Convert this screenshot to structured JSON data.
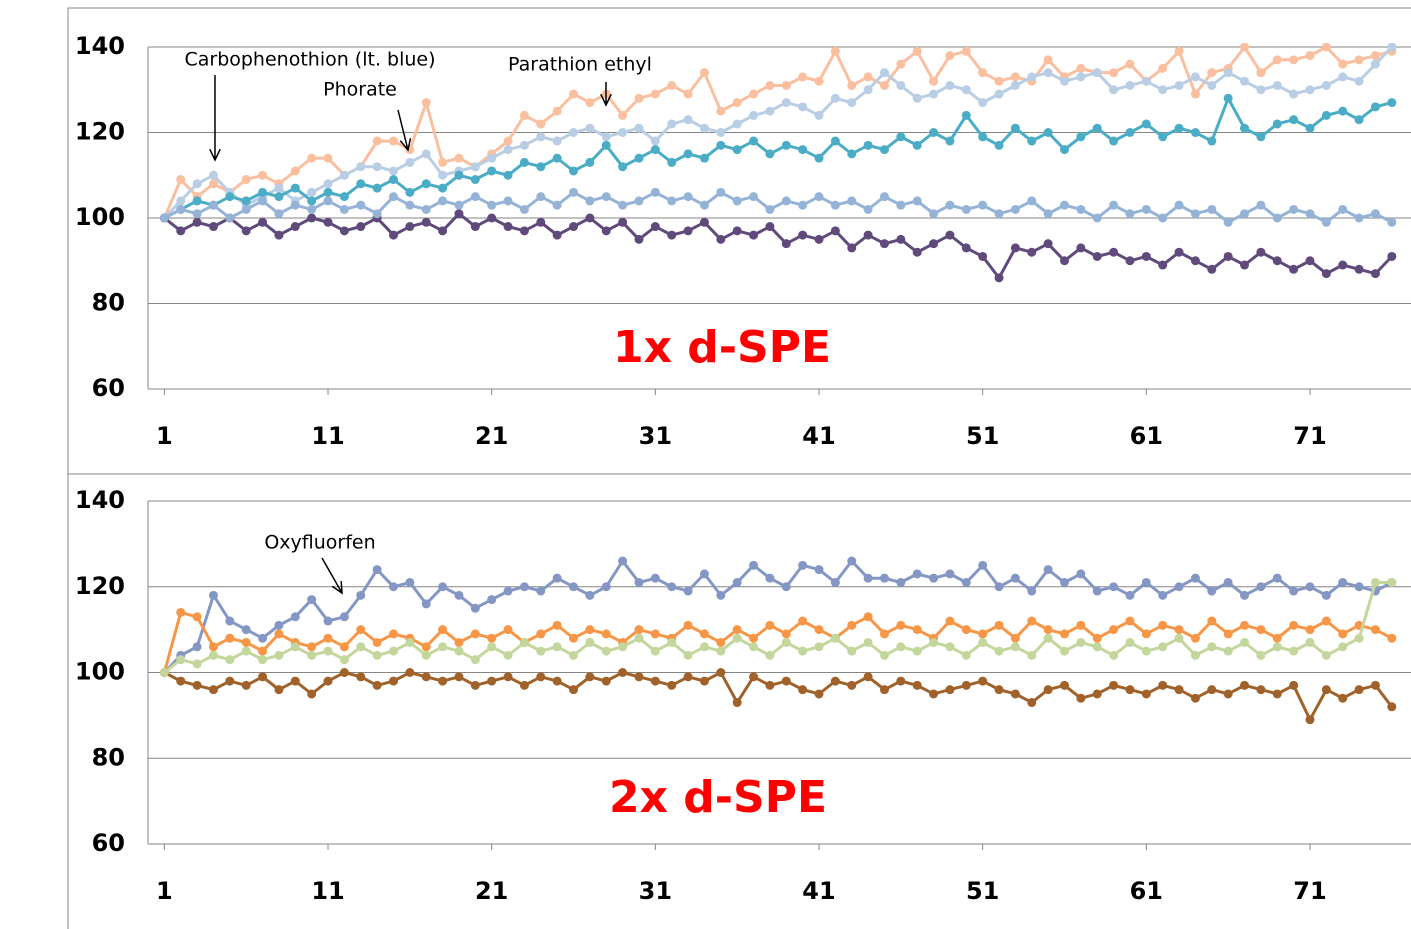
{
  "chart_data": [
    {
      "type": "line",
      "label": "1x d-SPE",
      "annotations": [
        "Carbophenothion (lt. blue)",
        "Phorate",
        "Parathion ethyl"
      ],
      "xlim": [
        0,
        76.5
      ],
      "xticks": [
        1,
        11,
        21,
        31,
        41,
        51,
        61,
        71
      ],
      "ylim": [
        60,
        140
      ],
      "yticks": [
        60,
        80,
        100,
        120,
        140
      ],
      "grid": true,
      "x": [
        1,
        2,
        3,
        4,
        5,
        6,
        7,
        8,
        9,
        10,
        11,
        12,
        13,
        14,
        15,
        16,
        17,
        18,
        19,
        20,
        21,
        22,
        23,
        24,
        25,
        26,
        27,
        28,
        29,
        30,
        31,
        32,
        33,
        34,
        35,
        36,
        37,
        38,
        39,
        40,
        41,
        42,
        43,
        44,
        45,
        46,
        47,
        48,
        49,
        50,
        51,
        52,
        53,
        54,
        55,
        56,
        57,
        58,
        59,
        60,
        61,
        62,
        63,
        64,
        65,
        66,
        67,
        68,
        69,
        70,
        71,
        72,
        73,
        74,
        75,
        76
      ],
      "series": [
        {
          "color": "#fabf9f",
          "values": [
            100,
            109,
            105,
            108,
            106,
            109,
            110,
            108,
            111,
            114,
            114,
            110,
            112,
            118,
            118,
            116,
            127,
            113,
            114,
            112,
            115,
            118,
            124,
            122,
            125,
            129,
            127,
            129,
            124,
            128,
            129,
            131,
            129,
            134,
            125,
            127,
            129,
            131,
            131,
            133,
            132,
            139,
            131,
            133,
            131,
            136,
            139,
            132,
            138,
            139,
            134,
            132,
            133,
            132,
            137,
            133,
            135,
            134,
            134,
            136,
            132,
            135,
            139,
            129,
            134,
            135,
            140,
            134,
            137,
            137,
            138,
            140,
            136,
            137,
            138,
            139
          ]
        },
        {
          "color": "#b9cde5",
          "values": [
            100,
            104,
            108,
            110,
            106,
            103,
            105,
            107,
            104,
            106,
            108,
            110,
            112,
            112,
            111,
            113,
            115,
            110,
            111,
            112,
            114,
            116,
            117,
            119,
            118,
            120,
            121,
            119,
            120,
            121,
            118,
            122,
            123,
            121,
            120,
            122,
            124,
            125,
            127,
            126,
            124,
            128,
            127,
            130,
            134,
            131,
            128,
            129,
            131,
            130,
            127,
            129,
            131,
            133,
            134,
            132,
            133,
            134,
            130,
            131,
            132,
            130,
            131,
            133,
            131,
            134,
            132,
            130,
            131,
            129,
            130,
            131,
            133,
            132,
            136,
            140
          ]
        },
        {
          "color": "#4bacc6",
          "values": [
            100,
            102,
            104,
            103,
            105,
            104,
            106,
            105,
            107,
            104,
            106,
            105,
            108,
            107,
            109,
            106,
            108,
            107,
            110,
            109,
            111,
            110,
            113,
            112,
            114,
            111,
            113,
            117,
            112,
            114,
            116,
            113,
            115,
            114,
            117,
            116,
            118,
            115,
            117,
            116,
            114,
            118,
            115,
            117,
            116,
            119,
            117,
            120,
            118,
            124,
            119,
            117,
            121,
            118,
            120,
            116,
            119,
            121,
            118,
            120,
            122,
            119,
            121,
            120,
            118,
            128,
            121,
            119,
            122,
            123,
            121,
            124,
            125,
            123,
            126,
            127
          ]
        },
        {
          "color": "#604a7b",
          "values": [
            100,
            97,
            99,
            98,
            100,
            97,
            99,
            96,
            98,
            100,
            99,
            97,
            98,
            100,
            96,
            98,
            99,
            97,
            101,
            98,
            100,
            98,
            97,
            99,
            96,
            98,
            100,
            97,
            99,
            95,
            98,
            96,
            97,
            99,
            95,
            97,
            96,
            98,
            94,
            96,
            95,
            97,
            93,
            96,
            94,
            95,
            92,
            94,
            96,
            93,
            91,
            86,
            93,
            92,
            94,
            90,
            93,
            91,
            92,
            90,
            91,
            89,
            92,
            90,
            88,
            91,
            89,
            92,
            90,
            88,
            90,
            87,
            89,
            88,
            87,
            91
          ]
        },
        {
          "color": "#95b3d7",
          "values": [
            100,
            102,
            101,
            103,
            100,
            102,
            104,
            101,
            103,
            102,
            104,
            102,
            103,
            101,
            105,
            103,
            102,
            104,
            103,
            105,
            103,
            104,
            102,
            105,
            103,
            106,
            104,
            105,
            103,
            104,
            106,
            104,
            105,
            103,
            106,
            104,
            105,
            102,
            104,
            103,
            105,
            103,
            104,
            102,
            105,
            103,
            104,
            101,
            103,
            102,
            103,
            101,
            102,
            104,
            101,
            103,
            102,
            100,
            103,
            101,
            102,
            100,
            103,
            101,
            102,
            99,
            101,
            103,
            100,
            102,
            101,
            99,
            102,
            100,
            101,
            99
          ]
        }
      ]
    },
    {
      "type": "line",
      "label": "2x d-SPE",
      "annotations": [
        "Oxyfluorfen"
      ],
      "xlim": [
        0,
        76.5
      ],
      "xticks": [
        1,
        11,
        21,
        31,
        41,
        51,
        61,
        71
      ],
      "ylim": [
        60,
        140
      ],
      "yticks": [
        60,
        80,
        100,
        120,
        140
      ],
      "grid": true,
      "x": [
        1,
        2,
        3,
        4,
        5,
        6,
        7,
        8,
        9,
        10,
        11,
        12,
        13,
        14,
        15,
        16,
        17,
        18,
        19,
        20,
        21,
        22,
        23,
        24,
        25,
        26,
        27,
        28,
        29,
        30,
        31,
        32,
        33,
        34,
        35,
        36,
        37,
        38,
        39,
        40,
        41,
        42,
        43,
        44,
        45,
        46,
        47,
        48,
        49,
        50,
        51,
        52,
        53,
        54,
        55,
        56,
        57,
        58,
        59,
        60,
        61,
        62,
        63,
        64,
        65,
        66,
        67,
        68,
        69,
        70,
        71,
        72,
        73,
        74,
        75,
        76
      ],
      "series": [
        {
          "color": "#8497c4",
          "values": [
            100,
            104,
            106,
            118,
            112,
            110,
            108,
            111,
            113,
            117,
            112,
            113,
            118,
            124,
            120,
            121,
            116,
            120,
            118,
            115,
            117,
            119,
            120,
            119,
            122,
            120,
            118,
            120,
            126,
            121,
            122,
            120,
            119,
            123,
            118,
            121,
            125,
            122,
            120,
            125,
            124,
            121,
            126,
            122,
            122,
            121,
            123,
            122,
            123,
            121,
            125,
            120,
            122,
            119,
            124,
            121,
            123,
            119,
            120,
            118,
            121,
            118,
            120,
            122,
            119,
            121,
            118,
            120,
            122,
            119,
            120,
            118,
            121,
            120,
            119,
            121
          ]
        },
        {
          "color": "#a0622a",
          "values": [
            100,
            98,
            97,
            96,
            98,
            97,
            99,
            96,
            98,
            95,
            98,
            100,
            99,
            97,
            98,
            100,
            99,
            98,
            99,
            97,
            98,
            99,
            97,
            99,
            98,
            96,
            99,
            98,
            100,
            99,
            98,
            97,
            99,
            98,
            100,
            93,
            99,
            97,
            98,
            96,
            95,
            98,
            97,
            99,
            96,
            98,
            97,
            95,
            96,
            97,
            98,
            96,
            95,
            93,
            96,
            97,
            94,
            95,
            97,
            96,
            95,
            97,
            96,
            94,
            96,
            95,
            97,
            96,
            95,
            97,
            89,
            96,
            94,
            96,
            97,
            92
          ]
        },
        {
          "color": "#f79646",
          "values": [
            100,
            114,
            113,
            106,
            108,
            107,
            105,
            109,
            107,
            106,
            108,
            106,
            110,
            107,
            109,
            108,
            106,
            110,
            107,
            109,
            108,
            110,
            107,
            109,
            111,
            108,
            110,
            109,
            107,
            110,
            109,
            108,
            111,
            109,
            107,
            110,
            108,
            111,
            109,
            112,
            110,
            108,
            111,
            113,
            109,
            111,
            110,
            108,
            112,
            110,
            109,
            111,
            108,
            112,
            110,
            109,
            111,
            108,
            110,
            112,
            109,
            111,
            110,
            108,
            112,
            109,
            111,
            110,
            108,
            111,
            110,
            112,
            109,
            111,
            110,
            108
          ]
        },
        {
          "color": "#c3d69b",
          "values": [
            100,
            103,
            102,
            104,
            103,
            105,
            103,
            104,
            106,
            104,
            105,
            103,
            106,
            104,
            105,
            107,
            104,
            106,
            105,
            103,
            106,
            104,
            107,
            105,
            106,
            104,
            107,
            105,
            106,
            108,
            105,
            107,
            104,
            106,
            105,
            108,
            106,
            104,
            107,
            105,
            106,
            108,
            105,
            107,
            104,
            106,
            105,
            107,
            106,
            104,
            107,
            105,
            106,
            104,
            108,
            105,
            107,
            106,
            104,
            107,
            105,
            106,
            108,
            104,
            106,
            105,
            107,
            104,
            106,
            105,
            107,
            104,
            106,
            108,
            121,
            121
          ]
        }
      ]
    }
  ]
}
